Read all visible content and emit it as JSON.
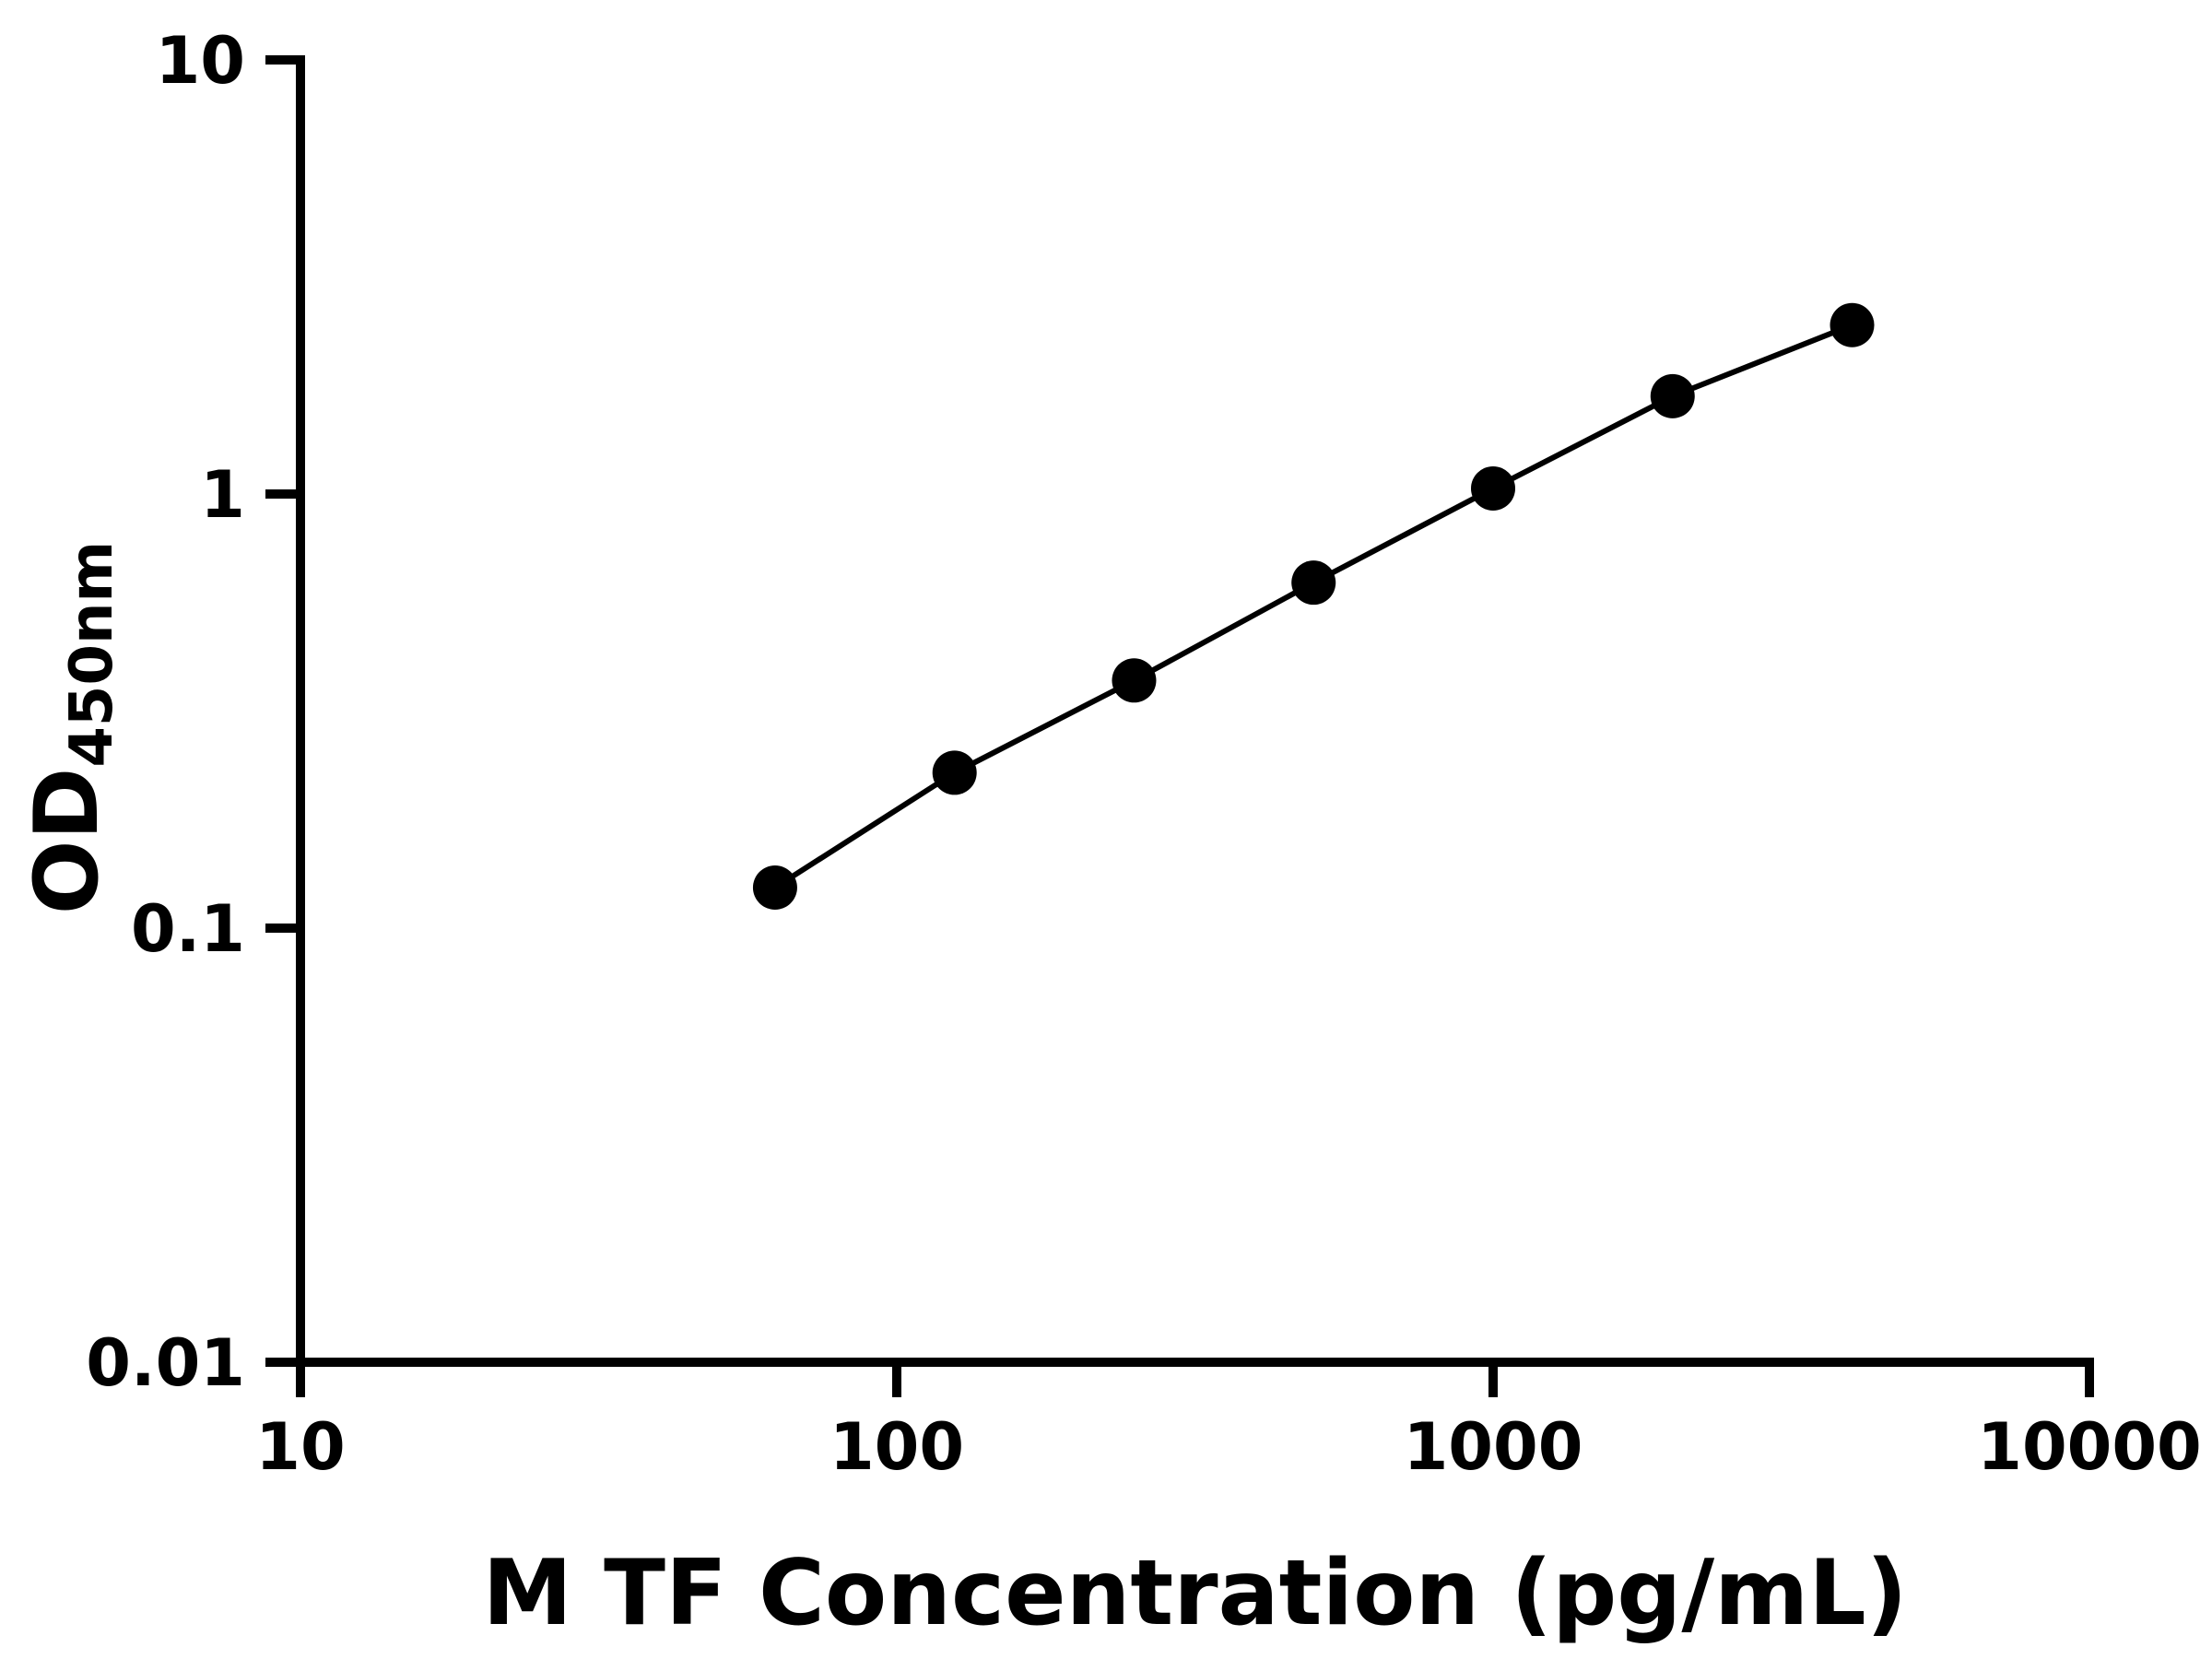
{
  "chart_data": {
    "type": "scatter",
    "title": "",
    "xlabel": "M TF Concentration (pg/mL)",
    "ylabel_main": "OD",
    "ylabel_sub": "450nm",
    "xscale": "log",
    "yscale": "log",
    "xlim": [
      10,
      10000
    ],
    "ylim": [
      0.01,
      10
    ],
    "xticks": [
      "10",
      "100",
      "1000",
      "10000"
    ],
    "xtick_values": [
      10,
      100,
      1000,
      10000
    ],
    "yticks": [
      "10",
      "1",
      "0.1",
      "0.01"
    ],
    "ytick_values": [
      10,
      1,
      0.1,
      0.01
    ],
    "x": [
      62.5,
      125,
      250,
      500,
      1000,
      2000,
      4000
    ],
    "y": [
      0.124,
      0.228,
      0.372,
      0.625,
      1.03,
      1.68,
      2.45
    ],
    "grid": false,
    "legend": null,
    "line_connects_points": true,
    "marker": "circle",
    "marker_color": "#000000",
    "line_color": "#000000",
    "axis_color": "#000000",
    "background_color": "#ffffff"
  }
}
